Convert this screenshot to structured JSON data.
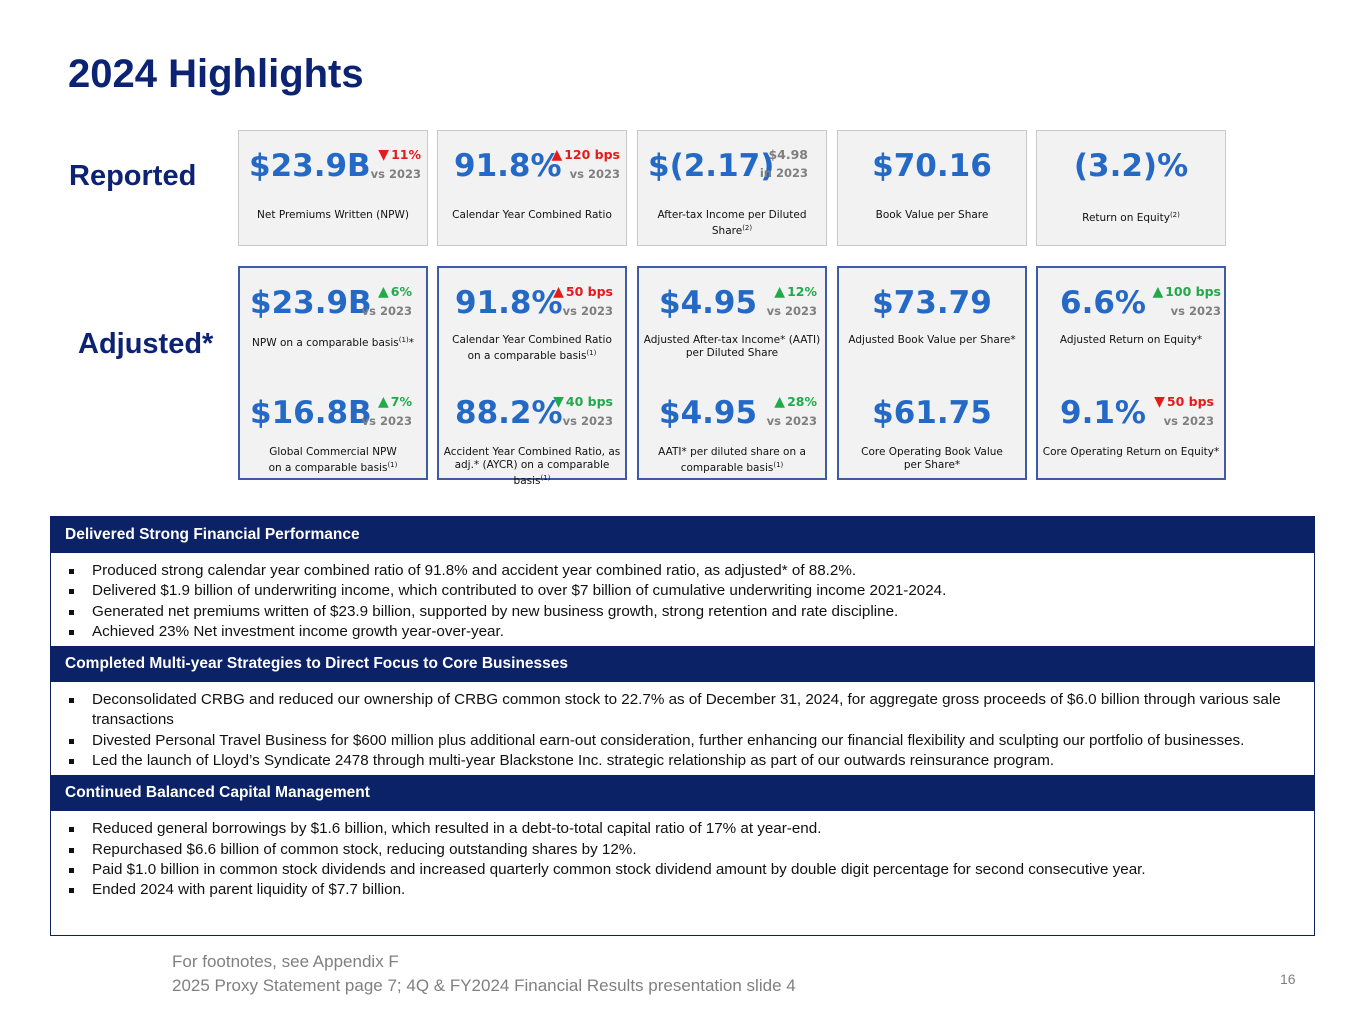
{
  "title": "2024 Highlights",
  "row_labels": {
    "reported": "Reported",
    "adjusted": "Adjusted*"
  },
  "reported": [
    {
      "value": "$23.9B",
      "change": "11%",
      "direction": "down",
      "sub": "vs 2023",
      "label": "Net Premiums Written (NPW)",
      "sup": ""
    },
    {
      "value": "91.8%",
      "change": "120 bps",
      "direction": "up-bad",
      "sub": "vs 2023",
      "label": "Calendar Year Combined Ratio",
      "sup": ""
    },
    {
      "value": "$(2.17)",
      "change": "$4.98",
      "direction": "none",
      "sub": "in 2023",
      "label": "After-tax Income per Diluted Share",
      "sup": "(2)"
    },
    {
      "value": "$70.16",
      "label": "Book Value per Share",
      "sup": ""
    },
    {
      "value": "(3.2)%",
      "label": "Return on Equity",
      "sup": "(2)"
    }
  ],
  "adjusted": [
    {
      "top": {
        "value": "$23.9B",
        "change": "6%",
        "direction": "up",
        "sub": "vs 2023",
        "label": "NPW on a comparable basis",
        "sup": "(1)",
        "suffix": "*"
      },
      "bottom": {
        "value": "$16.8B",
        "change": "7%",
        "direction": "up",
        "sub": "vs 2023",
        "label_line1": "Global Commercial NPW",
        "label_line2": "on a comparable basis",
        "sup": "(1)"
      }
    },
    {
      "top": {
        "value": "91.8%",
        "change": "50 bps",
        "direction": "up-bad",
        "sub": "vs 2023",
        "label_line1": "Calendar Year Combined Ratio",
        "label_line2": "on a comparable basis",
        "sup": "(1)"
      },
      "bottom": {
        "value": "88.2%",
        "change": "40 bps",
        "direction": "down-good",
        "sub": "vs 2023",
        "label_line1": "Accident Year Combined Ratio, as",
        "label_line2": "adj.* (AYCR) on a comparable basis",
        "sup": "(1)"
      }
    },
    {
      "top": {
        "value": "$4.95",
        "change": "12%",
        "direction": "up",
        "sub": "vs 2023",
        "label_line1": "Adjusted After-tax Income* (AATI)",
        "label_line2": "per Diluted Share"
      },
      "bottom": {
        "value": "$4.95",
        "change": "28%",
        "direction": "up",
        "sub": "vs 2023",
        "label_line1": "AATI* per diluted share on a",
        "label_line2": "comparable basis",
        "sup": "(1)"
      }
    },
    {
      "top": {
        "value": "$73.79",
        "label": "Adjusted Book Value per Share*"
      },
      "bottom": {
        "value": "$61.75",
        "label_line1": "Core Operating Book Value",
        "label_line2": "per Share*"
      }
    },
    {
      "top": {
        "value": "6.6%",
        "change": "100 bps",
        "direction": "up",
        "sub": "vs 2023",
        "label": "Adjusted Return on Equity*"
      },
      "bottom": {
        "value": "9.1%",
        "change": "50 bps",
        "direction": "down",
        "sub": "vs 2023",
        "label": "Core Operating Return on Equity*"
      }
    }
  ],
  "sections": [
    {
      "heading": "Delivered Strong Financial Performance",
      "bullets": [
        "Produced strong calendar year combined ratio of 91.8% and accident year combined ratio, as adjusted* of 88.2%.",
        "Delivered $1.9 billion of underwriting income, which contributed to over $7 billion of cumulative underwriting income 2021-2024.",
        "Generated net premiums written of $23.9 billion, supported by new business growth, strong retention and rate discipline.",
        "Achieved 23% Net investment income growth year-over-year."
      ]
    },
    {
      "heading": "Completed Multi-year Strategies to Direct Focus to Core Businesses",
      "bullets": [
        "Deconsolidated CRBG and reduced our ownership of CRBG common stock to 22.7% as of December 31, 2024, for aggregate gross proceeds of $6.0 billion through various sale transactions",
        "Divested Personal Travel Business for $600 million plus additional earn-out consideration, further enhancing our financial flexibility and sculpting our portfolio of businesses.",
        "Led the launch of Lloyd’s Syndicate 2478 through multi-year Blackstone Inc. strategic relationship as part of our outwards reinsurance program."
      ]
    },
    {
      "heading": "Continued Balanced Capital Management",
      "bullets": [
        "Reduced general borrowings by $1.6 billion, which resulted in a debt-to-total capital ratio of 17% at year-end.",
        "Repurchased $6.6 billion of common stock, reducing outstanding shares by 12%.",
        "Paid $1.0 billion in common stock dividends and increased quarterly common stock dividend amount by double digit percentage for second consecutive year.",
        "Ended 2024 with parent liquidity of $7.7 billion."
      ]
    }
  ],
  "footnotes": [
    "For footnotes, see Appendix F",
    "2025 Proxy Statement page 7; 4Q & FY2024 Financial Results presentation slide 4"
  ],
  "page_number": "16",
  "colors": {
    "navy": "#0c2273",
    "value_blue": "#2469c5",
    "up_green": "#22a94a",
    "down_red": "#e41b1b"
  }
}
